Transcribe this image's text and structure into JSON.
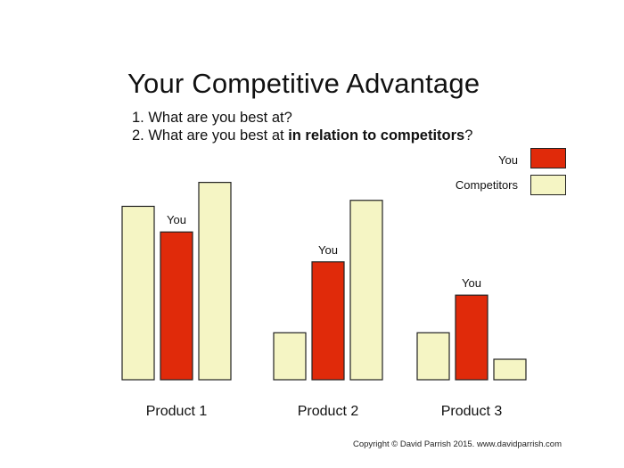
{
  "title": "Your Competitive Advantage",
  "questions": {
    "q1": "1. What are you best at?",
    "q2_prefix": "2. What are you best at ",
    "q2_bold": "in relation to competitors",
    "q2_suffix": "?"
  },
  "legend": {
    "you": "You",
    "competitors": "Competitors"
  },
  "colors": {
    "you": "#e02a0a",
    "competitors": "#f5f5c4",
    "outline": "#222222"
  },
  "chart_data": {
    "type": "bar",
    "categories": [
      "Product 1",
      "Product 2",
      "Product 3"
    ],
    "series": [
      {
        "name": "Competitors",
        "values": [
          203,
          55,
          55
        ]
      },
      {
        "name": "You",
        "values": [
          173,
          138,
          99
        ]
      },
      {
        "name": "Competitors",
        "values": [
          231,
          210,
          24
        ]
      }
    ],
    "bar_labels": [
      "You",
      "You",
      "You"
    ],
    "bar_label_series": "You",
    "ylim": [
      0,
      240
    ],
    "xlabel": "",
    "ylabel": "",
    "grid": false
  },
  "copyright": "Copyright © David Parrish 2015. www.davidparrish.com"
}
